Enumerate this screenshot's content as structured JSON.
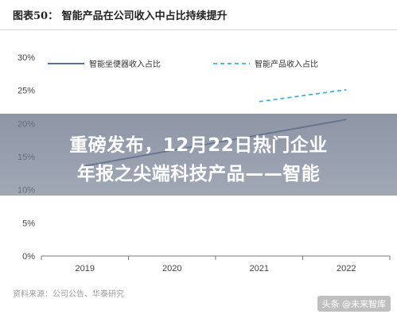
{
  "header": {
    "figure_title": "图表50：  智能产品在公司收入中占比持续提升"
  },
  "banner": {
    "line1": "重磅发布，12月22日热门企业",
    "line2": "年报之尖端科技产品——智能"
  },
  "source": "资料来源：公司公告、华泰研究",
  "watermark": "头条 @未来智库",
  "chart_data": {
    "type": "line",
    "categories": [
      "2019",
      "2020",
      "2021",
      "2022"
    ],
    "ylim": [
      0,
      30
    ],
    "yticks": [
      "0%",
      "5%",
      "10%",
      "15%",
      "20%",
      "25%",
      "30%"
    ],
    "series": [
      {
        "name": "智能坐便器收入占比",
        "values": [
          13.6,
          null,
          null,
          20.6
        ],
        "color": "#3b5f93",
        "style": "solid"
      },
      {
        "name": "智能产品收入占比",
        "values": [
          null,
          null,
          23.3,
          25.1
        ],
        "color": "#3fb3d8",
        "style": "dashed"
      }
    ],
    "legend": "top"
  }
}
